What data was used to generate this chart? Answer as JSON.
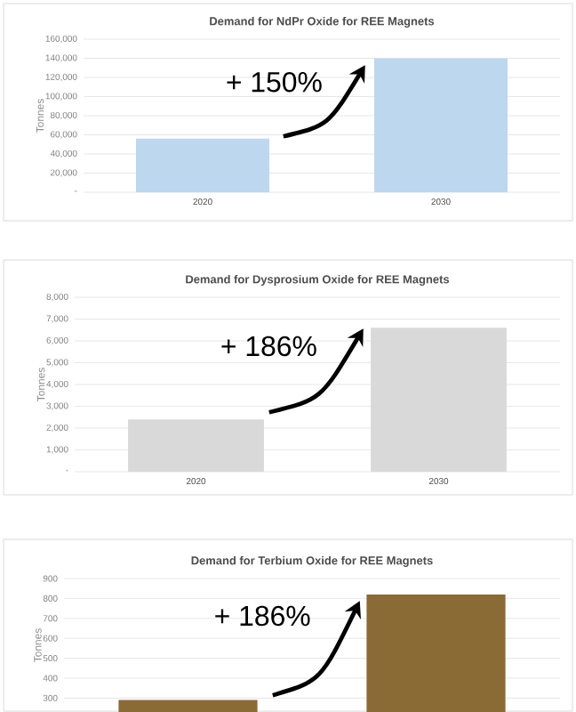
{
  "chart_data": [
    {
      "type": "bar",
      "title": "Demand for NdPr Oxide for REE Magnets",
      "ylabel": "Tonnes",
      "categories": [
        "2020",
        "2030"
      ],
      "values": [
        56000,
        140000
      ],
      "color": "#bdd7ee",
      "ylim": [
        0,
        160000
      ],
      "yticks": [
        {
          "value": 0,
          "label": "-"
        },
        {
          "value": 20000,
          "label": "20,000"
        },
        {
          "value": 40000,
          "label": "40,000"
        },
        {
          "value": 60000,
          "label": "60,000"
        },
        {
          "value": 80000,
          "label": "80,000"
        },
        {
          "value": 100000,
          "label": "100,000"
        },
        {
          "value": 120000,
          "label": "120,000"
        },
        {
          "value": 140000,
          "label": "140,000"
        },
        {
          "value": 160000,
          "label": "160,000"
        }
      ],
      "grid": "y",
      "annotations": [
        "+ 150%"
      ]
    },
    {
      "type": "bar",
      "title": "Demand for Dysprosium Oxide for REE Magnets",
      "ylabel": "Tonnes",
      "categories": [
        "2020",
        "2030"
      ],
      "values": [
        2400,
        6600
      ],
      "color": "#d9d9d9",
      "ylim": [
        0,
        8000
      ],
      "yticks": [
        {
          "value": 0,
          "label": "-"
        },
        {
          "value": 1000,
          "label": "1,000"
        },
        {
          "value": 2000,
          "label": "2,000"
        },
        {
          "value": 3000,
          "label": "3,000"
        },
        {
          "value": 4000,
          "label": "4,000"
        },
        {
          "value": 5000,
          "label": "5,000"
        },
        {
          "value": 6000,
          "label": "6,000"
        },
        {
          "value": 7000,
          "label": "7,000"
        },
        {
          "value": 8000,
          "label": "8,000"
        }
      ],
      "grid": "y",
      "annotations": [
        "+ 186%"
      ]
    },
    {
      "type": "bar",
      "title": "Demand for Terbium Oxide for REE Magnets",
      "ylabel": "Tonnes",
      "categories": [
        null,
        null
      ],
      "values": [
        290,
        820
      ],
      "color": "#8a6a35",
      "ylim": [
        230,
        900
      ],
      "yticks": [
        300,
        400,
        500,
        600,
        700,
        800,
        900
      ],
      "grid": "y",
      "annotations": [
        "+ 186%"
      ]
    }
  ]
}
